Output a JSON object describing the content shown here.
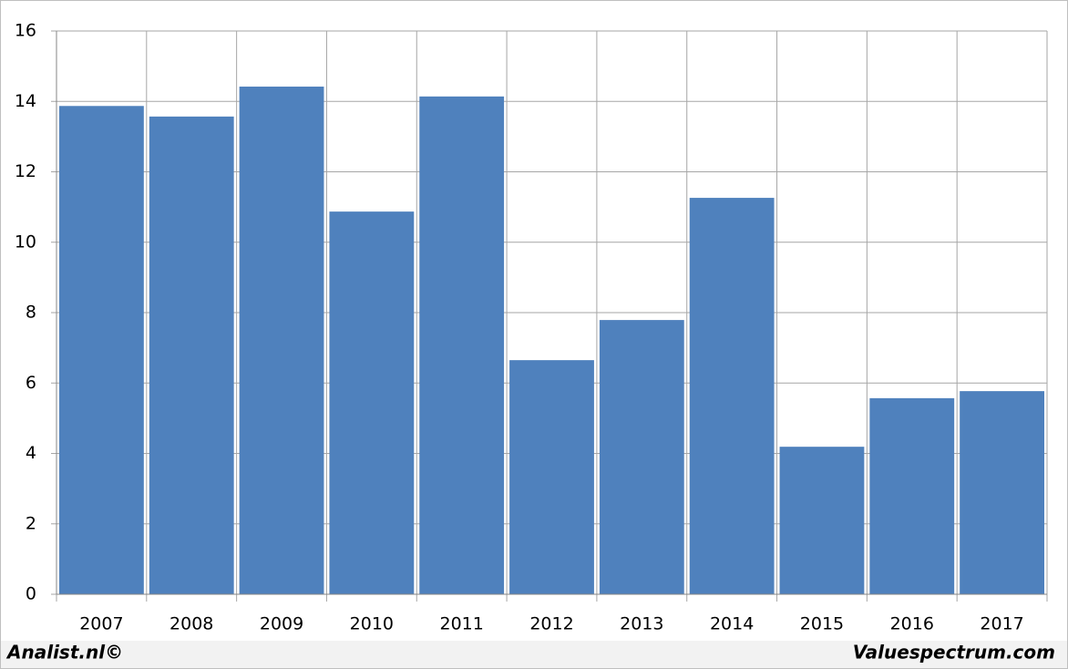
{
  "chart_data": {
    "type": "bar",
    "categories": [
      "2007",
      "2008",
      "2009",
      "2010",
      "2011",
      "2012",
      "2013",
      "2014",
      "2015",
      "2016",
      "2017"
    ],
    "values": [
      13.87,
      13.57,
      14.42,
      10.87,
      14.14,
      6.65,
      7.79,
      11.26,
      4.19,
      5.57,
      5.77
    ],
    "color": "#4f81bd",
    "ylim": [
      0,
      16
    ],
    "yticks": [
      0,
      2,
      4,
      6,
      8,
      10,
      12,
      14,
      16
    ],
    "grid": true,
    "credits": [
      "Analist.nl©",
      "Valuespectrum.com"
    ]
  }
}
